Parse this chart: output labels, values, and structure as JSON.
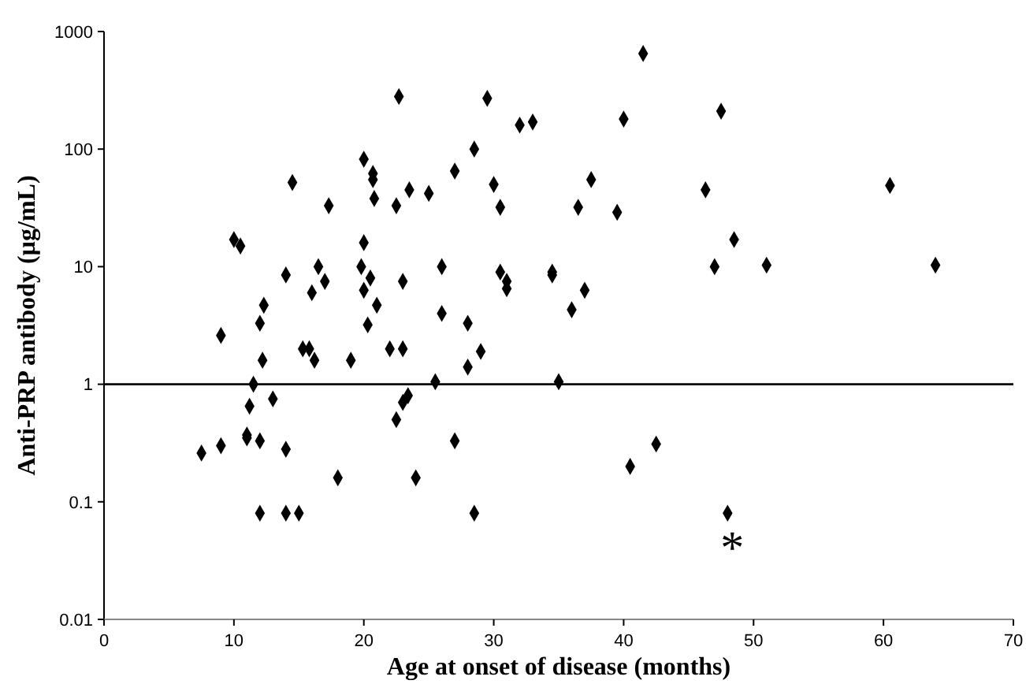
{
  "chart_data": {
    "type": "scatter",
    "xlabel": "Age at onset of disease (months)",
    "ylabel": "Anti-PRP antibody (µg/mL)",
    "log": "y",
    "xlim": [
      0,
      70
    ],
    "xticks": [
      0,
      10,
      20,
      30,
      40,
      50,
      60,
      70
    ],
    "ylim": [
      0.01,
      1000
    ],
    "yticks": [
      0.01,
      0.1,
      1,
      10,
      100,
      1000
    ],
    "grid": false,
    "marker": "diamond",
    "ref_lines": [
      {
        "axis": "y",
        "value": 1,
        "color": "#000000"
      }
    ],
    "annotations": [
      {
        "text": "*",
        "x": 48,
        "y": 0.08
      }
    ],
    "series": [
      {
        "color": "#000000",
        "x": [
          7.5,
          9,
          9,
          10,
          10.5,
          11,
          11,
          11.5,
          11.2,
          12,
          12,
          12.3,
          12.2,
          12,
          13,
          14,
          14,
          14.5,
          14,
          15,
          15.3,
          15.8,
          16,
          16.2,
          16.5,
          17,
          17.3,
          18,
          19,
          19.8,
          20,
          20,
          20,
          20.3,
          20.5,
          20.7,
          20.7,
          20.8,
          21,
          22,
          22.5,
          22.5,
          22.7,
          23,
          23,
          23,
          23.4,
          23.5,
          24,
          25,
          25.5,
          26,
          26,
          27,
          27,
          28,
          28,
          28.5,
          28.5,
          29,
          29.5,
          30,
          30.5,
          30.5,
          31,
          31,
          32,
          33,
          34.5,
          34.5,
          35,
          36,
          36.5,
          37,
          37.5,
          39.5,
          40,
          40.5,
          41.5,
          42.5,
          46.3,
          47,
          47.5,
          48,
          48.5,
          51,
          60.5,
          64
        ],
        "values": [
          0.26,
          0.3,
          2.6,
          17,
          15,
          0.35,
          0.37,
          1,
          0.65,
          0.08,
          3.3,
          4.7,
          1.6,
          0.33,
          0.75,
          8.5,
          0.28,
          52,
          0.08,
          0.08,
          2,
          2,
          6,
          1.6,
          10,
          7.5,
          33,
          0.16,
          1.6,
          10,
          16,
          6.3,
          82,
          3.2,
          8,
          55,
          62,
          38,
          4.7,
          2,
          0.5,
          33,
          280,
          0.7,
          7.5,
          2,
          0.8,
          45,
          0.16,
          42,
          1.05,
          10,
          4,
          0.33,
          65,
          3.3,
          1.4,
          100,
          0.08,
          1.9,
          270,
          50,
          32,
          9,
          7.5,
          6.5,
          160,
          170,
          8.5,
          9,
          1.05,
          4.3,
          32,
          6.3,
          55,
          29,
          180,
          0.2,
          650,
          0.31,
          45,
          10,
          210,
          0.08,
          17,
          10.3,
          49,
          10.3
        ]
      }
    ]
  }
}
